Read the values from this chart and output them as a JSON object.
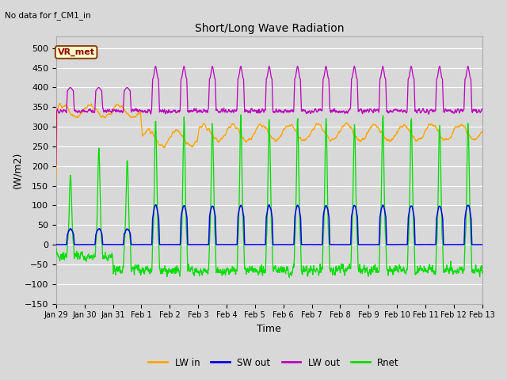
{
  "title": "Short/Long Wave Radiation",
  "xlabel": "Time",
  "ylabel": "(W/m2)",
  "top_left_text": "No data for f_CM1_in",
  "station_label": "VR_met",
  "ylim": [
    -150,
    530
  ],
  "yticks": [
    -150,
    -100,
    -50,
    0,
    50,
    100,
    150,
    200,
    250,
    300,
    350,
    400,
    450,
    500
  ],
  "colors": {
    "LW_in": "#FFA500",
    "SW_out": "#0000EE",
    "LW_out": "#BB00BB",
    "Rnet": "#00DD00",
    "background": "#D8D8D8",
    "grid": "#FFFFFF"
  },
  "x_tick_labels": [
    "Jan 29",
    "Jan 30",
    "Jan 31",
    "Feb 1",
    "Feb 2",
    "Feb 3",
    "Feb 4",
    "Feb 5",
    "Feb 6",
    "Feb 7",
    "Feb 8",
    "Feb 9",
    "Feb 10",
    "Feb 11",
    "Feb 12",
    "Feb 13"
  ],
  "legend_entries": [
    "LW in",
    "SW out",
    "LW out",
    "Rnet"
  ]
}
